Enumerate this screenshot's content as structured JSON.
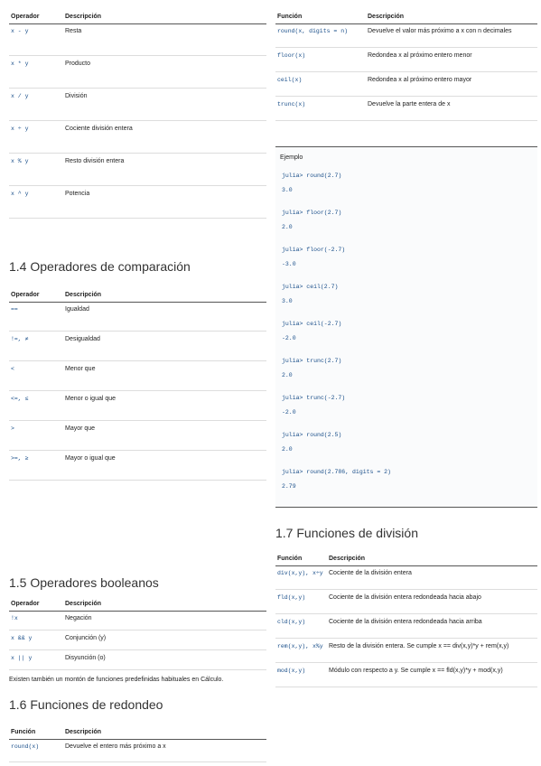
{
  "arithmetic": {
    "headers": [
      "Operador",
      "Descripción"
    ],
    "rows": [
      [
        "x - y",
        "Resta"
      ],
      [
        "x * y",
        "Producto"
      ],
      [
        "x / y",
        "División"
      ],
      [
        "x ÷ y",
        "Cociente división entera"
      ],
      [
        "x % y",
        "Resto división entera"
      ],
      [
        "x ^ y",
        "Potencia"
      ]
    ]
  },
  "comparison": {
    "title": "1.4 Operadores de comparación",
    "headers": [
      "Operador",
      "Descripción"
    ],
    "rows": [
      [
        "==",
        "Igualdad"
      ],
      [
        "!=, ≠",
        "Desigualdad"
      ],
      [
        "<",
        "Menor que"
      ],
      [
        "<=, ≤",
        "Menor o igual que"
      ],
      [
        ">",
        "Mayor que"
      ],
      [
        ">=, ≥",
        "Mayor o igual que"
      ]
    ]
  },
  "boolean": {
    "title": "1.5 Operadores booleanos",
    "headers": [
      "Operador",
      "Descripción"
    ],
    "rows": [
      [
        "!x",
        "Negación"
      ],
      [
        "x && y",
        "Conjunción (y)"
      ],
      [
        "x || y",
        "Disyunción (o)"
      ]
    ]
  },
  "paragraph": "Existen también un montón de funciones predefinidas habituales en Cálculo.",
  "rounding": {
    "title": "1.6 Funciones de redondeo",
    "headers": [
      "Función",
      "Descripción"
    ],
    "rows": [
      [
        "round(x)",
        "Devuelve el entero más próximo a x"
      ]
    ]
  },
  "rounding_continued": {
    "headers": [
      "Función",
      "Descripción"
    ],
    "rows": [
      [
        "round(x, digits = n)",
        "Devuelve el valor más próximo a x con n decimales"
      ],
      [
        "floor(x)",
        "Redondea x al próximo entero menor"
      ],
      [
        "ceil(x)",
        "Redondea x al próximo entero mayor"
      ],
      [
        "trunc(x)",
        "Devuelve la parte entera de x"
      ]
    ]
  },
  "example": {
    "label": "Ejemplo",
    "lines": [
      "julia> round(2.7)",
      "3.0",
      "julia> floor(2.7)",
      "2.0",
      "julia> floor(-2.7)",
      "-3.0",
      "julia> ceil(2.7)",
      "3.0",
      "julia> ceil(-2.7)",
      "-2.0",
      "julia> trunc(2.7)",
      "2.0",
      "julia> trunc(-2.7)",
      "-2.0",
      "julia> round(2.5)",
      "2.0",
      "julia> round(2.786, digits = 2)",
      "2.79"
    ]
  },
  "division": {
    "title": "1.7 Funciones de división",
    "headers": [
      "Función",
      "Descripción"
    ],
    "rows": [
      [
        "div(x,y), x÷y",
        "Cociente de la división entera"
      ],
      [
        "fld(x,y)",
        "Cociente de la división entera redondeada hacia abajo"
      ],
      [
        "cld(x,y)",
        "Cociente de la división entera redondeada hacia arriba"
      ],
      [
        "rem(x,y), x%y",
        "Resto de la división entera. Se cumple x == div(x,y)*y + rem(x,y)"
      ],
      [
        "mod(x,y)",
        "Módulo con respecto a y. Se cumple x == fld(x,y)*y + mod(x,y)"
      ]
    ]
  }
}
